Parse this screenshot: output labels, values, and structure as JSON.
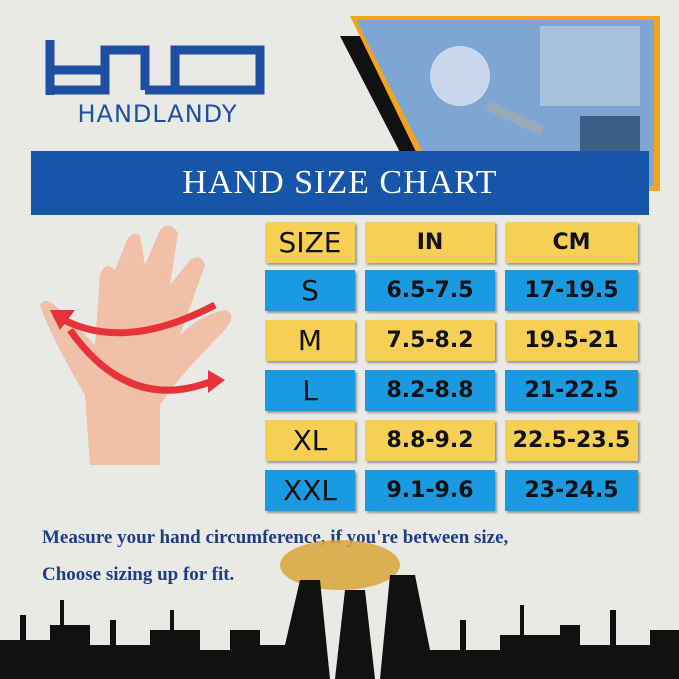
{
  "brand": {
    "logo_letters": "HD",
    "name": "HANDLANDY",
    "color": "#1f4fa0"
  },
  "banner": {
    "title": "HAND SIZE CHART",
    "color": "#1655a8"
  },
  "table": {
    "headers": [
      "SIZE",
      "IN",
      "CM"
    ],
    "rows": [
      [
        "S",
        "6.5-7.5",
        "17-19.5"
      ],
      [
        "M",
        "7.5-8.2",
        "19.5-21"
      ],
      [
        "L",
        "8.2-8.8",
        "21-22.5"
      ],
      [
        "XL",
        "8.8-9.2",
        "22.5-23.5"
      ],
      [
        "XXL",
        "9.1-9.6",
        "23-24.5"
      ]
    ],
    "colors": {
      "yellow": "#f7cf55",
      "blue": "#1a9ae0"
    }
  },
  "note": {
    "line1": "Measure your hand circumference, if you're between size,",
    "line2": "Choose sizing up for fit."
  },
  "icons": {
    "hand": "hand-measure-icon",
    "arrows": "circumference-arrows-icon"
  }
}
